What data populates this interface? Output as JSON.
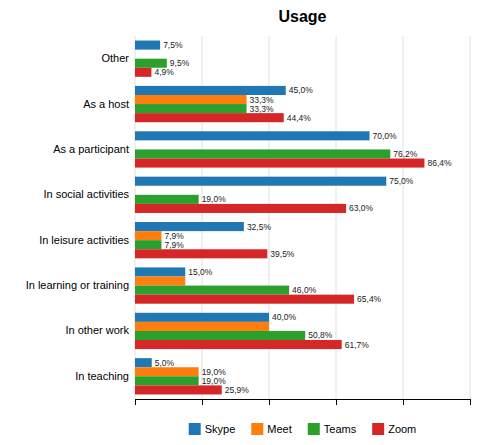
{
  "chart_data": {
    "type": "bar",
    "title": "Usage",
    "orientation": "horizontal",
    "categories": [
      "In teaching",
      "In other work",
      "In learning or training",
      "In leisure activities",
      "In social activities",
      "As a participant",
      "As a host",
      "Other"
    ],
    "series": [
      {
        "name": "Skype",
        "values": [
          5.0,
          40.0,
          15.0,
          32.5,
          75.0,
          70.0,
          45.0,
          7.5
        ],
        "value_labels": [
          "5,0%",
          "40,0%",
          "15,0%",
          "32,5%",
          "75,0%",
          "70,0%",
          "45,0%",
          "7,5%"
        ]
      },
      {
        "name": "Meet",
        "values": [
          19.0,
          40.0,
          15.0,
          7.9,
          0.0,
          0.0,
          33.3,
          0.0
        ],
        "value_labels": [
          "19,0%",
          null,
          null,
          "7,9%",
          null,
          null,
          "33,3%",
          null
        ]
      },
      {
        "name": "Teams",
        "values": [
          19.0,
          50.8,
          46.0,
          7.9,
          19.0,
          76.2,
          33.3,
          9.5
        ],
        "value_labels": [
          "19,0%",
          "50,8%",
          "46,0%",
          "7,9%",
          "19,0%",
          "76,2%",
          "33,3%",
          "9,5%"
        ]
      },
      {
        "name": "Zoom",
        "values": [
          25.9,
          61.7,
          65.4,
          39.5,
          63.0,
          86.4,
          44.4,
          4.9
        ],
        "value_labels": [
          "25,9%",
          "61,7%",
          "65,4%",
          "39,5%",
          "63,0%",
          "86,4%",
          "44,4%",
          "4,9%"
        ]
      }
    ],
    "xlim": [
      0,
      100
    ],
    "xticks": [
      0,
      20,
      40,
      60,
      80,
      100
    ],
    "grid": true,
    "tick_labels": "y",
    "data_labels": true,
    "legend": "bottom"
  }
}
